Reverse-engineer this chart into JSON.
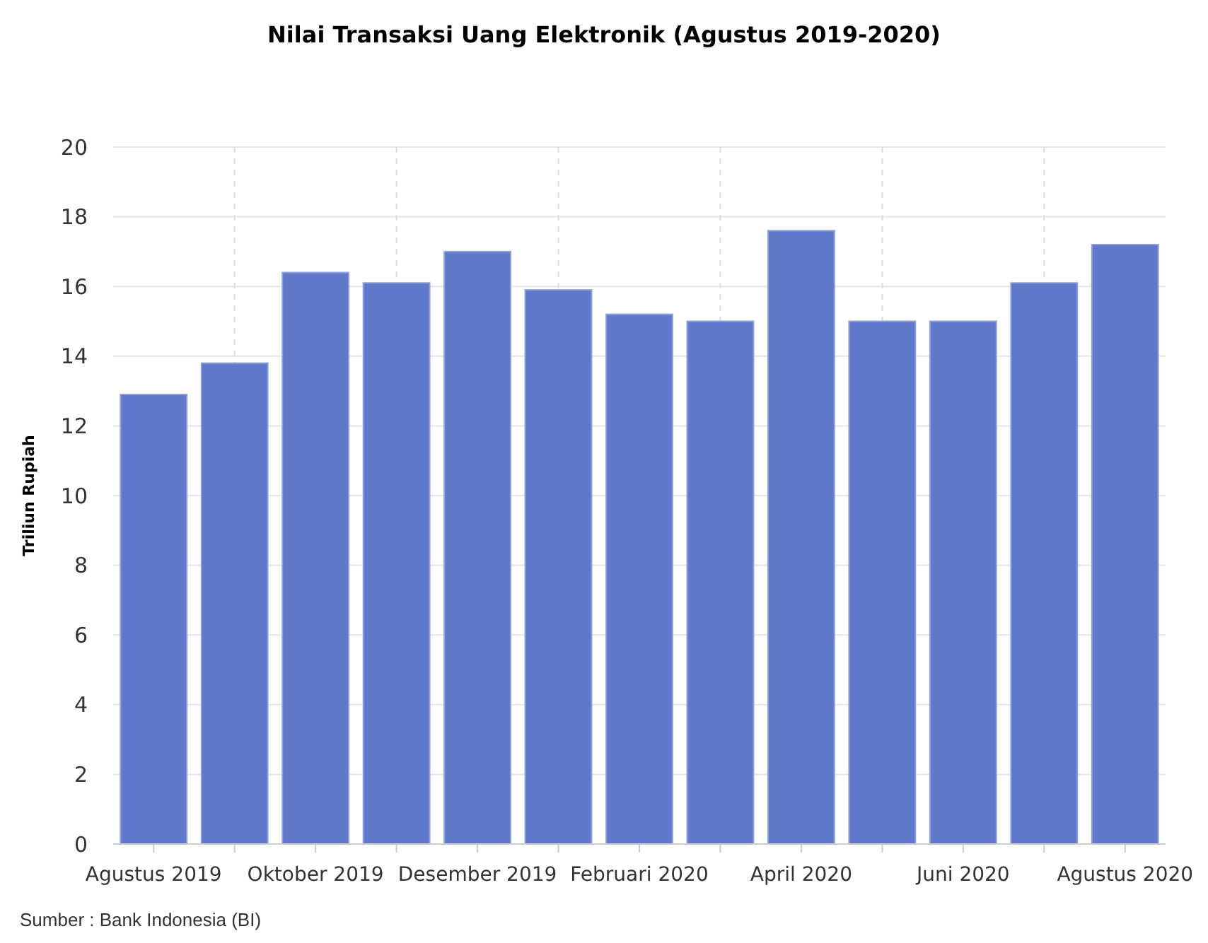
{
  "chart_data": {
    "type": "bar",
    "title": "Nilai Transaksi Uang Elektronik (Agustus 2019-2020)",
    "ylabel": "Triliun Rupiah",
    "categories": [
      "Agustus 2019",
      null,
      "Oktober 2019",
      null,
      "Desember 2019",
      null,
      "Februari 2020",
      null,
      "April 2020",
      null,
      "Juni 2020",
      null,
      "Agustus 2020"
    ],
    "values": [
      12.9,
      13.8,
      16.4,
      16.1,
      17.0,
      15.9,
      15.2,
      15.0,
      17.6,
      15.0,
      15.0,
      16.1,
      17.2
    ],
    "color": "#6079cb",
    "ylim": [
      0,
      20
    ],
    "yticks": [
      0,
      2,
      4,
      6,
      8,
      10,
      12,
      14,
      16,
      18,
      20
    ],
    "grid": true,
    "annotations": [
      "Sumber : Bank Indonesia (BI)"
    ]
  }
}
